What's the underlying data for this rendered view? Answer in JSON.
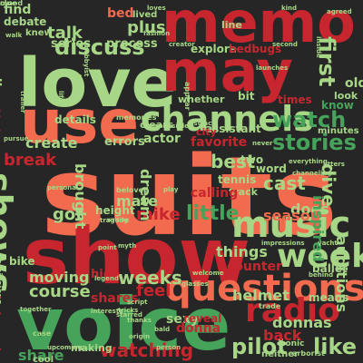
{
  "palette": {
    "red": "#c7262e",
    "salmon": "#f26b4e",
    "green": "#46a35a",
    "lightgreen": "#a7d786",
    "background": "#262626"
  },
  "words": [
    {
      "text": "suits",
      "color": "salmon",
      "rank": 1
    },
    {
      "text": "show",
      "color": "red",
      "rank": 2
    },
    {
      "text": "voice",
      "color": "green",
      "rank": 3
    },
    {
      "text": "love",
      "color": "lightgreen",
      "rank": 4
    },
    {
      "text": "memo",
      "color": "red",
      "rank": 5
    },
    {
      "text": "use",
      "color": "salmon",
      "rank": 6
    },
    {
      "text": "may",
      "color": "red",
      "rank": 7
    },
    {
      "text": "questions",
      "color": "salmon",
      "rank": 8
    },
    {
      "text": "channels",
      "color": "lightgreen",
      "rank": 9
    },
    {
      "text": "music",
      "color": "lightgreen",
      "rank": 10
    },
    {
      "text": "shows",
      "color": "lightgreen",
      "rank": 11
    },
    {
      "text": "week",
      "color": "lightgreen",
      "rank": 12
    },
    {
      "text": "radio",
      "color": "red",
      "rank": 13
    },
    {
      "text": "watch",
      "color": "green",
      "rank": 14
    },
    {
      "text": "stories",
      "color": "green",
      "rank": 15
    },
    {
      "text": "discuss",
      "color": "lightgreen",
      "rank": 16
    },
    {
      "text": "first",
      "color": "lightgreen",
      "rank": 17
    },
    {
      "text": "pilot",
      "color": "lightgreen",
      "rank": 18
    },
    {
      "text": "like",
      "color": "lightgreen",
      "rank": 19
    },
    {
      "text": "little",
      "color": "green",
      "rank": 20
    },
    {
      "text": "talk",
      "color": "lightgreen",
      "rank": 21
    },
    {
      "text": "plus",
      "color": "lightgreen",
      "rank": 22
    },
    {
      "text": "bed",
      "color": "salmon",
      "rank": 23
    },
    {
      "text": "weeks",
      "color": "lightgreen",
      "rank": 24
    },
    {
      "text": "watching",
      "color": "red",
      "rank": 25
    },
    {
      "text": "course",
      "color": "lightgreen",
      "rank": 26
    },
    {
      "text": "moving",
      "color": "lightgreen",
      "rank": 27
    },
    {
      "text": "back",
      "color": "red",
      "rank": 28
    },
    {
      "text": "donnas",
      "color": "lightgreen",
      "rank": 29
    },
    {
      "text": "cast",
      "color": "lightgreen",
      "rank": 30
    },
    {
      "text": "best",
      "color": "lightgreen",
      "rank": 31
    },
    {
      "text": "dive",
      "color": "lightgreen",
      "rank": 32
    },
    {
      "text": "got",
      "color": "lightgreen",
      "rank": 33
    },
    {
      "text": "feel",
      "color": "red",
      "rank": 34
    },
    {
      "text": "mike",
      "color": "red",
      "rank": 35
    },
    {
      "text": "mate",
      "color": "lightgreen",
      "rank": 36
    },
    {
      "text": "break",
      "color": "red",
      "rank": 37
    },
    {
      "text": "create",
      "color": "lightgreen",
      "rank": 38
    },
    {
      "text": "brought",
      "color": "lightgreen",
      "rank": 39
    },
    {
      "text": "dream",
      "color": "lightgreen",
      "rank": 40
    },
    {
      "text": "things",
      "color": "lightgreen",
      "rank": 41
    },
    {
      "text": "does",
      "color": "lightgreen",
      "rank": 42
    },
    {
      "text": "season",
      "color": "salmon",
      "rank": 43
    },
    {
      "text": "helmet",
      "color": "lightgreen",
      "rank": 44
    },
    {
      "text": "inspired",
      "color": "green",
      "rank": 45
    },
    {
      "text": "auditions",
      "color": "lightgreen",
      "rank": 46
    },
    {
      "text": "share",
      "color": "green",
      "rank": 47
    },
    {
      "text": "shares",
      "color": "red",
      "rank": 48
    },
    {
      "text": "casting",
      "color": "red",
      "rank": 49
    },
    {
      "text": "really",
      "color": "lightgreen",
      "rank": 50
    },
    {
      "text": "series",
      "color": "lightgreen",
      "rank": 51
    },
    {
      "text": "process",
      "color": "lightgreen",
      "rank": 52
    },
    {
      "text": "explore",
      "color": "lightgreen",
      "rank": 53
    },
    {
      "text": "bedbugs",
      "color": "red",
      "rank": 54
    },
    {
      "text": "old",
      "color": "lightgreen",
      "rank": 55
    },
    {
      "text": "actor",
      "color": "lightgreen",
      "rank": 56
    },
    {
      "text": "errors",
      "color": "lightgreen",
      "rank": 57
    },
    {
      "text": "favorite",
      "color": "red",
      "rank": 58
    },
    {
      "text": "tennis",
      "color": "lightgreen",
      "rank": 59
    },
    {
      "text": "track",
      "color": "lightgreen",
      "rank": 60
    },
    {
      "text": "word",
      "color": "lightgreen",
      "rank": 61
    },
    {
      "text": "two",
      "color": "lightgreen",
      "rank": 62
    },
    {
      "text": "height",
      "color": "lightgreen",
      "rank": 63
    },
    {
      "text": "counter",
      "color": "red",
      "rank": 64
    },
    {
      "text": "sexy",
      "color": "lightgreen",
      "rank": 65
    },
    {
      "text": "means",
      "color": "lightgreen",
      "rank": 66
    },
    {
      "text": "ballet",
      "color": "lightgreen",
      "rank": 67
    },
    {
      "text": "find",
      "color": "lightgreen",
      "rank": 68
    },
    {
      "text": "debate",
      "color": "lightgreen",
      "rank": 69
    },
    {
      "text": "knew",
      "color": "lightgreen",
      "rank": 70
    },
    {
      "text": "lived",
      "color": "lightgreen",
      "rank": 71
    },
    {
      "text": "details",
      "color": "lightgreen",
      "rank": 72
    },
    {
      "text": "bit",
      "color": "lightgreen",
      "rank": 73
    },
    {
      "text": "whether",
      "color": "lightgreen",
      "rank": 74
    },
    {
      "text": "times",
      "color": "red",
      "rank": 75
    },
    {
      "text": "clears",
      "color": "lightgreen",
      "rank": 76
    },
    {
      "text": "calling",
      "color": "red",
      "rank": 77
    },
    {
      "text": "assistant",
      "color": "lightgreen",
      "rank": 78
    },
    {
      "text": "know",
      "color": "green",
      "rank": 79
    },
    {
      "text": "look",
      "color": "lightgreen",
      "rank": 80
    },
    {
      "text": "city",
      "color": "red",
      "rank": 81
    },
    {
      "text": "line",
      "color": "lightgreen",
      "rank": 82
    },
    {
      "text": "high",
      "color": "red",
      "rank": 83
    },
    {
      "text": "bike",
      "color": "lightgreen",
      "rank": 84
    },
    {
      "text": "making",
      "color": "lightgreen",
      "rank": 85
    },
    {
      "text": "minutes",
      "color": "lightgreen",
      "rank": 86
    },
    {
      "text": "cool",
      "color": "lightgreen",
      "rank": 87
    },
    {
      "text": "pursue",
      "color": "lightgreen",
      "rank": 88
    },
    {
      "text": "kissing",
      "color": "red",
      "rank": 89
    },
    {
      "text": "donna",
      "color": "red",
      "rank": 90
    },
    {
      "text": "reveal",
      "color": "red",
      "rank": 91
    },
    {
      "text": "neither",
      "color": "lightgreen",
      "rank": 92
    },
    {
      "text": "omissions",
      "color": "lightgreen",
      "rank": 93
    },
    {
      "text": "background",
      "color": "red",
      "rank": 94
    },
    {
      "text": "trade",
      "color": "lightgreen",
      "rank": 95
    },
    {
      "text": "jitters",
      "color": "lightgreen",
      "rank": 96
    },
    {
      "text": "iconic",
      "color": "lightgreen",
      "rank": 97
    },
    {
      "text": "arborist",
      "color": "lightgreen",
      "rank": 98
    },
    {
      "text": "impressions",
      "color": "lightgreen",
      "rank": 99
    },
    {
      "text": "yacht",
      "color": "lightgreen",
      "rank": 100
    },
    {
      "text": "memories",
      "color": "lightgreen",
      "rank": 101
    },
    {
      "text": "script",
      "color": "lightgreen",
      "rank": 102
    },
    {
      "text": "tricks",
      "color": "lightgreen",
      "rank": 103
    },
    {
      "text": "case",
      "color": "lightgreen",
      "rank": 104
    },
    {
      "text": "walk",
      "color": "lightgreen",
      "rank": 105
    },
    {
      "text": "fashion",
      "color": "lightgreen",
      "rank": 106
    },
    {
      "text": "launches",
      "color": "lightgreen",
      "rank": 107
    },
    {
      "text": "welcome",
      "color": "lightgreen",
      "rank": 108
    },
    {
      "text": "beloved",
      "color": "lightgreen",
      "rank": 109
    },
    {
      "text": "tragedy",
      "color": "lightgreen",
      "rank": 110
    },
    {
      "text": "writing",
      "color": "lightgreen",
      "rank": 111
    },
    {
      "text": "thirty",
      "color": "lightgreen",
      "rank": 112
    },
    {
      "text": "hobbyist",
      "color": "lightgreen",
      "rank": 113
    },
    {
      "text": "loves",
      "color": "lightgreen",
      "rank": 114
    },
    {
      "text": "kind",
      "color": "lightgreen",
      "rank": 115
    },
    {
      "text": "creator",
      "color": "lightgreen",
      "rank": 116
    },
    {
      "text": "inside",
      "color": "lightgreen",
      "rank": 117
    },
    {
      "text": "appear",
      "color": "lightgreen",
      "rank": 118
    },
    {
      "text": "personal",
      "color": "lightgreen",
      "rank": 119
    },
    {
      "text": "responsible",
      "color": "lightgreen",
      "rank": 120
    },
    {
      "text": "distract",
      "color": "lightgreen",
      "rank": 121
    },
    {
      "text": "channeling",
      "color": "lightgreen",
      "rank": 122
    },
    {
      "text": "everything",
      "color": "lightgreen",
      "rank": 123
    },
    {
      "text": "myth",
      "color": "lightgreen",
      "rank": 124
    },
    {
      "text": "point",
      "color": "lightgreen",
      "rank": 125
    },
    {
      "text": "play",
      "color": "lightgreen",
      "rank": 126
    },
    {
      "text": "never",
      "color": "lightgreen",
      "rank": 127
    },
    {
      "text": "trailer",
      "color": "lightgreen",
      "rank": 128
    },
    {
      "text": "starred",
      "color": "lightgreen",
      "rank": 129
    },
    {
      "text": "legend",
      "color": "lightgreen",
      "rank": 130
    },
    {
      "text": "origin",
      "color": "lightgreen",
      "rank": 131
    },
    {
      "text": "person",
      "color": "lightgreen",
      "rank": 132
    },
    {
      "text": "behind",
      "color": "lightgreen",
      "rank": 133
    },
    {
      "text": "upcoming",
      "color": "lightgreen",
      "rank": 134
    },
    {
      "text": "second",
      "color": "lightgreen",
      "rank": 135
    },
    {
      "text": "interests",
      "color": "lightgreen",
      "rank": 136
    },
    {
      "text": "thanks",
      "color": "lightgreen",
      "rank": 137
    },
    {
      "text": "glasses",
      "color": "lightgreen",
      "rank": 138
    },
    {
      "text": "bald",
      "color": "lightgreen",
      "rank": 139
    },
    {
      "text": "life",
      "color": "lightgreen",
      "rank": 140
    },
    {
      "text": "agreed",
      "color": "lightgreen",
      "rank": 141
    },
    {
      "text": "together",
      "color": "lightgreen",
      "rank": 142
    },
    {
      "text": "mood",
      "color": "lightgreen",
      "rank": 143
    },
    {
      "text": "clue",
      "color": "lightgreen",
      "rank": 144
    }
  ]
}
